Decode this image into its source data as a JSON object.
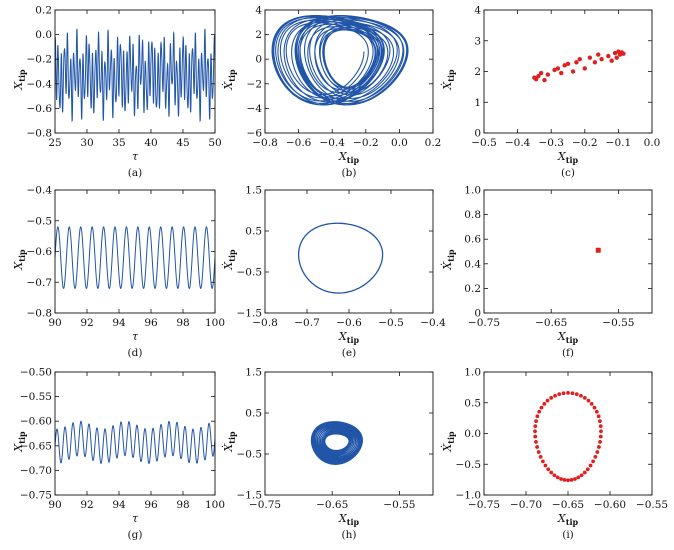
{
  "chart_data": [
    {
      "id": "a",
      "type": "line",
      "caption": "(a)",
      "xlabel": "τ",
      "ylabel": "X",
      "ylabel_sub": "tip",
      "xlim": [
        25,
        50
      ],
      "ylim": [
        -0.8,
        0.2
      ],
      "xticks": [
        25,
        30,
        35,
        40,
        45,
        50
      ],
      "xtick_labels": [
        "25",
        "30",
        "35",
        "40",
        "45",
        "50"
      ],
      "yticks": [
        -0.8,
        -0.6,
        -0.4,
        -0.2,
        0.0,
        0.2
      ],
      "ytick_labels": [
        "−0.8",
        "−0.6",
        "−0.4",
        "−0.2",
        "0.0",
        "0.2"
      ],
      "color": "#2155a8",
      "signal": {
        "t0": 25,
        "t1": 50,
        "mean": -0.33,
        "components": [
          {
            "amp": 0.22,
            "freq": 2.05
          },
          {
            "amp": 0.1,
            "freq": 0.6
          },
          {
            "amp": 0.06,
            "freq": 3.3
          }
        ]
      }
    },
    {
      "id": "b",
      "type": "line",
      "caption": "(b)",
      "xlabel": "X",
      "xlabel_sub": "tip",
      "ylabel": "Ẋ",
      "ylabel_sub": "tip",
      "xlim": [
        -0.8,
        0.2
      ],
      "ylim": [
        -6,
        4
      ],
      "xticks": [
        -0.8,
        -0.6,
        -0.4,
        -0.2,
        0.0,
        0.2
      ],
      "xtick_labels": [
        "−0.8",
        "−0.6",
        "−0.4",
        "−0.2",
        "0.0",
        "0.2"
      ],
      "yticks": [
        -6,
        -4,
        -2,
        0,
        2,
        4
      ],
      "ytick_labels": [
        "−6",
        "−4",
        "−2",
        "0",
        "2",
        "4"
      ],
      "color": "#2155a8",
      "orbit": {
        "cx": -0.35,
        "cy": 0.3,
        "rx": [
          0.16,
          0.33
        ],
        "ry": [
          2.3,
          3.6
        ],
        "loops": 26,
        "skew": 0.45,
        "shift": 0.09
      }
    },
    {
      "id": "c",
      "type": "scatter",
      "caption": "(c)",
      "xlabel": "X",
      "xlabel_sub": "tip",
      "ylabel": "Ẋ",
      "ylabel_sub": "tip",
      "xlim": [
        -0.5,
        0.0
      ],
      "ylim": [
        0,
        4
      ],
      "xticks": [
        -0.5,
        -0.4,
        -0.3,
        -0.2,
        -0.1,
        0.0
      ],
      "xtick_labels": [
        "−0.5",
        "−0.4",
        "−0.3",
        "−0.2",
        "−0.1",
        "0.0"
      ],
      "yticks": [
        0,
        1,
        2,
        3,
        4
      ],
      "ytick_labels": [
        "0",
        "1",
        "2",
        "3",
        "4"
      ],
      "color": "#e02020",
      "x": [
        -0.35,
        -0.345,
        -0.338,
        -0.33,
        -0.32,
        -0.31,
        -0.29,
        -0.28,
        -0.27,
        -0.26,
        -0.25,
        -0.235,
        -0.225,
        -0.215,
        -0.2,
        -0.185,
        -0.17,
        -0.16,
        -0.15,
        -0.13,
        -0.12,
        -0.11,
        -0.105,
        -0.1,
        -0.095,
        -0.09,
        -0.085
      ],
      "y": [
        1.8,
        1.75,
        1.85,
        1.95,
        1.72,
        1.9,
        2.05,
        2.1,
        1.95,
        2.2,
        2.25,
        2.0,
        2.3,
        2.4,
        2.1,
        2.45,
        2.3,
        2.55,
        2.4,
        2.5,
        2.35,
        2.6,
        2.45,
        2.65,
        2.55,
        2.62,
        2.58
      ]
    },
    {
      "id": "d",
      "type": "line",
      "caption": "(d)",
      "xlabel": "τ",
      "ylabel": "X",
      "ylabel_sub": "tip",
      "xlim": [
        90,
        100
      ],
      "ylim": [
        -0.8,
        -0.4
      ],
      "xticks": [
        90,
        92,
        94,
        96,
        98,
        100
      ],
      "xtick_labels": [
        "90",
        "92",
        "94",
        "96",
        "98",
        "100"
      ],
      "yticks": [
        -0.8,
        -0.7,
        -0.6,
        -0.5,
        -0.4
      ],
      "ytick_labels": [
        "−0.8",
        "−0.7",
        "−0.6",
        "−0.5",
        "−0.4"
      ],
      "color": "#2155a8",
      "signal": {
        "t0": 90,
        "t1": 100,
        "mean": -0.62,
        "components": [
          {
            "amp": 0.1,
            "freq": 1.4
          }
        ]
      }
    },
    {
      "id": "e",
      "type": "line",
      "caption": "(e)",
      "xlabel": "X",
      "xlabel_sub": "tip",
      "ylabel": "Ẋ",
      "ylabel_sub": "tip",
      "xlim": [
        -0.8,
        -0.4
      ],
      "ylim": [
        -1.5,
        1.5
      ],
      "xticks": [
        -0.8,
        -0.7,
        -0.6,
        -0.5,
        -0.4
      ],
      "xtick_labels": [
        "−0.8",
        "−0.7",
        "−0.6",
        "−0.5",
        "−0.4"
      ],
      "yticks": [
        -1.5,
        -0.5,
        0.5,
        1.5
      ],
      "ytick_labels": [
        "−1.5",
        "−0.5",
        "0.5",
        "1.5"
      ],
      "color": "#2155a8",
      "orbit": {
        "cx": -0.62,
        "cy": -0.12,
        "rx": [
          0.1,
          0.1
        ],
        "ry": [
          0.85,
          0.85
        ],
        "loops": 1,
        "skew": 0.2,
        "shift": 0.0
      }
    },
    {
      "id": "f",
      "type": "scatter",
      "caption": "(f)",
      "xlabel": "X",
      "xlabel_sub": "tip",
      "ylabel": "Ẋ",
      "ylabel_sub": "tip",
      "xlim": [
        -0.75,
        -0.5
      ],
      "ylim": [
        0,
        1
      ],
      "xticks": [
        -0.75,
        -0.65,
        -0.55
      ],
      "xtick_labels": [
        "−0.75",
        "−0.65",
        "−0.55"
      ],
      "yticks": [
        0,
        0.2,
        0.4,
        0.6,
        0.8,
        1.0
      ],
      "ytick_labels": [
        "0",
        "0.2",
        "0.4",
        "0.6",
        "0.8",
        "1.0"
      ],
      "color": "#e02020",
      "x": [
        -0.58
      ],
      "y": [
        0.51
      ]
    },
    {
      "id": "g",
      "type": "line",
      "caption": "(g)",
      "xlabel": "τ",
      "ylabel": "X",
      "ylabel_sub": "tip",
      "xlim": [
        90,
        100
      ],
      "ylim": [
        -0.75,
        -0.5
      ],
      "xticks": [
        90,
        92,
        94,
        96,
        98,
        100
      ],
      "xtick_labels": [
        "90",
        "92",
        "94",
        "96",
        "98",
        "100"
      ],
      "yticks": [
        -0.75,
        -0.7,
        -0.65,
        -0.6,
        -0.55,
        -0.5
      ],
      "ytick_labels": [
        "−0.75",
        "−0.70",
        "−0.65",
        "−0.60",
        "−0.55",
        "−0.50"
      ],
      "color": "#2155a8",
      "signal": {
        "t0": 90,
        "t1": 100,
        "mean": -0.643,
        "components": [
          {
            "amp": 0.035,
            "freq": 2.0
          },
          {
            "amp": 0.008,
            "freq": 0.35
          }
        ]
      }
    },
    {
      "id": "h",
      "type": "line",
      "caption": "(h)",
      "xlabel": "X",
      "xlabel_sub": "tip",
      "ylabel": "Ẋ",
      "ylabel_sub": "tip",
      "xlim": [
        -0.75,
        -0.5
      ],
      "ylim": [
        -1.5,
        1.5
      ],
      "xticks": [
        -0.75,
        -0.65,
        -0.55
      ],
      "xtick_labels": [
        "−0.75",
        "−0.65",
        "−0.55"
      ],
      "yticks": [
        -1.5,
        -0.5,
        0.5,
        1.5
      ],
      "ytick_labels": [
        "−1.5",
        "−0.5",
        "0.5",
        "1.5"
      ],
      "color": "#2155a8",
      "orbit": {
        "cx": -0.643,
        "cy": -0.2,
        "rx": [
          0.018,
          0.038
        ],
        "ry": [
          0.2,
          0.52
        ],
        "loops": 40,
        "skew": 0.25,
        "shift": 0.0
      }
    },
    {
      "id": "i",
      "type": "scatter",
      "caption": "(i)",
      "xlabel": "X",
      "xlabel_sub": "tip",
      "ylabel": "Ẋ",
      "ylabel_sub": "tip",
      "xlim": [
        -0.75,
        -0.55
      ],
      "ylim": [
        -1,
        1
      ],
      "xticks": [
        -0.75,
        -0.7,
        -0.65,
        -0.6,
        -0.55
      ],
      "xtick_labels": [
        "−0.75",
        "−0.70",
        "−0.65",
        "−0.60",
        "−0.55"
      ],
      "yticks": [
        -1,
        -0.5,
        0,
        0.5,
        1
      ],
      "ytick_labels": [
        "−1.0",
        "−0.5",
        "0.0",
        "0.5",
        "1.0"
      ],
      "color": "#e02020",
      "ring": {
        "cx": -0.65,
        "cy": -0.05,
        "rx": 0.039,
        "ry": 0.71,
        "count": 52,
        "skew": 0.12
      }
    }
  ]
}
